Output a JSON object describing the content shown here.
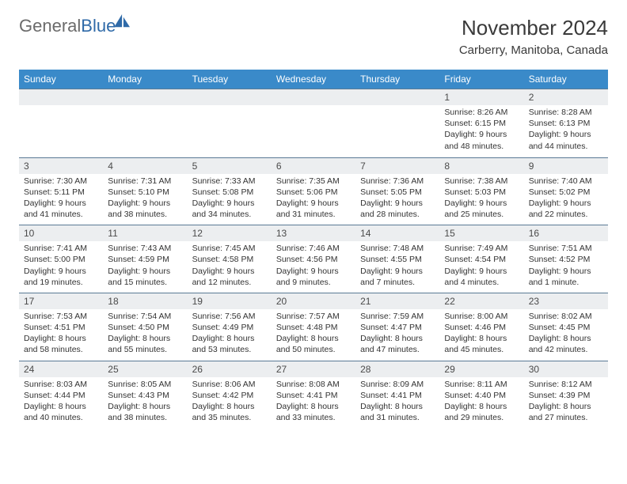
{
  "brand": {
    "part1": "General",
    "part2": "Blue"
  },
  "title": "November 2024",
  "location": "Carberry, Manitoba, Canada",
  "colors": {
    "header_bg": "#3a8ac9",
    "header_text": "#ffffff",
    "daynum_bg": "#eceef0",
    "border_top": "#5a7a95",
    "text": "#333333",
    "brand_gray": "#6b6b6b",
    "brand_blue": "#2f6aa8"
  },
  "weekdays": [
    "Sunday",
    "Monday",
    "Tuesday",
    "Wednesday",
    "Thursday",
    "Friday",
    "Saturday"
  ],
  "weeks": [
    [
      null,
      null,
      null,
      null,
      null,
      {
        "n": "1",
        "sr": "8:26 AM",
        "ss": "6:15 PM",
        "dl": "9 hours and 48 minutes."
      },
      {
        "n": "2",
        "sr": "8:28 AM",
        "ss": "6:13 PM",
        "dl": "9 hours and 44 minutes."
      }
    ],
    [
      {
        "n": "3",
        "sr": "7:30 AM",
        "ss": "5:11 PM",
        "dl": "9 hours and 41 minutes."
      },
      {
        "n": "4",
        "sr": "7:31 AM",
        "ss": "5:10 PM",
        "dl": "9 hours and 38 minutes."
      },
      {
        "n": "5",
        "sr": "7:33 AM",
        "ss": "5:08 PM",
        "dl": "9 hours and 34 minutes."
      },
      {
        "n": "6",
        "sr": "7:35 AM",
        "ss": "5:06 PM",
        "dl": "9 hours and 31 minutes."
      },
      {
        "n": "7",
        "sr": "7:36 AM",
        "ss": "5:05 PM",
        "dl": "9 hours and 28 minutes."
      },
      {
        "n": "8",
        "sr": "7:38 AM",
        "ss": "5:03 PM",
        "dl": "9 hours and 25 minutes."
      },
      {
        "n": "9",
        "sr": "7:40 AM",
        "ss": "5:02 PM",
        "dl": "9 hours and 22 minutes."
      }
    ],
    [
      {
        "n": "10",
        "sr": "7:41 AM",
        "ss": "5:00 PM",
        "dl": "9 hours and 19 minutes."
      },
      {
        "n": "11",
        "sr": "7:43 AM",
        "ss": "4:59 PM",
        "dl": "9 hours and 15 minutes."
      },
      {
        "n": "12",
        "sr": "7:45 AM",
        "ss": "4:58 PM",
        "dl": "9 hours and 12 minutes."
      },
      {
        "n": "13",
        "sr": "7:46 AM",
        "ss": "4:56 PM",
        "dl": "9 hours and 9 minutes."
      },
      {
        "n": "14",
        "sr": "7:48 AM",
        "ss": "4:55 PM",
        "dl": "9 hours and 7 minutes."
      },
      {
        "n": "15",
        "sr": "7:49 AM",
        "ss": "4:54 PM",
        "dl": "9 hours and 4 minutes."
      },
      {
        "n": "16",
        "sr": "7:51 AM",
        "ss": "4:52 PM",
        "dl": "9 hours and 1 minute."
      }
    ],
    [
      {
        "n": "17",
        "sr": "7:53 AM",
        "ss": "4:51 PM",
        "dl": "8 hours and 58 minutes."
      },
      {
        "n": "18",
        "sr": "7:54 AM",
        "ss": "4:50 PM",
        "dl": "8 hours and 55 minutes."
      },
      {
        "n": "19",
        "sr": "7:56 AM",
        "ss": "4:49 PM",
        "dl": "8 hours and 53 minutes."
      },
      {
        "n": "20",
        "sr": "7:57 AM",
        "ss": "4:48 PM",
        "dl": "8 hours and 50 minutes."
      },
      {
        "n": "21",
        "sr": "7:59 AM",
        "ss": "4:47 PM",
        "dl": "8 hours and 47 minutes."
      },
      {
        "n": "22",
        "sr": "8:00 AM",
        "ss": "4:46 PM",
        "dl": "8 hours and 45 minutes."
      },
      {
        "n": "23",
        "sr": "8:02 AM",
        "ss": "4:45 PM",
        "dl": "8 hours and 42 minutes."
      }
    ],
    [
      {
        "n": "24",
        "sr": "8:03 AM",
        "ss": "4:44 PM",
        "dl": "8 hours and 40 minutes."
      },
      {
        "n": "25",
        "sr": "8:05 AM",
        "ss": "4:43 PM",
        "dl": "8 hours and 38 minutes."
      },
      {
        "n": "26",
        "sr": "8:06 AM",
        "ss": "4:42 PM",
        "dl": "8 hours and 35 minutes."
      },
      {
        "n": "27",
        "sr": "8:08 AM",
        "ss": "4:41 PM",
        "dl": "8 hours and 33 minutes."
      },
      {
        "n": "28",
        "sr": "8:09 AM",
        "ss": "4:41 PM",
        "dl": "8 hours and 31 minutes."
      },
      {
        "n": "29",
        "sr": "8:11 AM",
        "ss": "4:40 PM",
        "dl": "8 hours and 29 minutes."
      },
      {
        "n": "30",
        "sr": "8:12 AM",
        "ss": "4:39 PM",
        "dl": "8 hours and 27 minutes."
      }
    ]
  ],
  "labels": {
    "sunrise": "Sunrise: ",
    "sunset": "Sunset: ",
    "daylight": "Daylight: "
  }
}
